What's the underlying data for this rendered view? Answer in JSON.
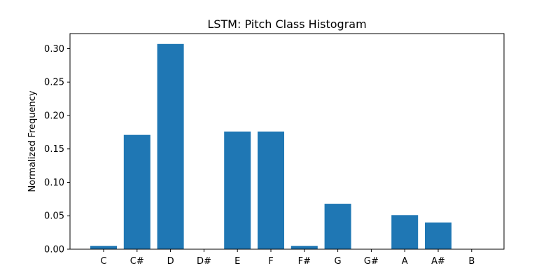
{
  "chart_data": {
    "type": "bar",
    "title": "LSTM: Pitch Class Histogram",
    "xlabel": "",
    "ylabel": "Normalized Frequency",
    "categories": [
      "C",
      "C#",
      "D",
      "D#",
      "E",
      "F",
      "F#",
      "G",
      "G#",
      "A",
      "A#",
      "B"
    ],
    "values": [
      0.005,
      0.171,
      0.307,
      0.0,
      0.176,
      0.176,
      0.005,
      0.068,
      0.0,
      0.051,
      0.04,
      0.0
    ],
    "ylim": [
      0,
      0.3225
    ],
    "yticks": [
      "0.00",
      "0.05",
      "0.10",
      "0.15",
      "0.20",
      "0.25",
      "0.30"
    ],
    "bar_color": "#1f77b4",
    "grid": false,
    "legend": "none"
  }
}
